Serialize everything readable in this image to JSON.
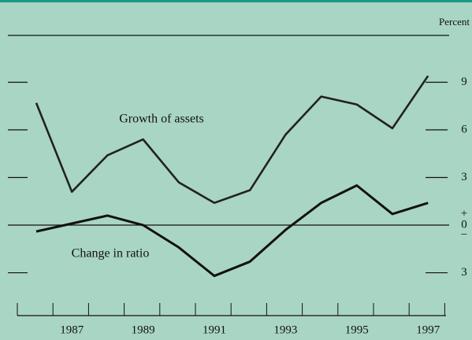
{
  "chart_data": {
    "type": "line",
    "unit_label": "Percent",
    "categories": [
      "1986",
      "1987",
      "1988",
      "1989",
      "1990",
      "1991",
      "1992",
      "1993",
      "1994",
      "1995",
      "1996",
      "1997"
    ],
    "category_labels": [
      null,
      "1987",
      null,
      "1989",
      null,
      "1991",
      null,
      "1993",
      null,
      "1995",
      null,
      "1997"
    ],
    "series": [
      {
        "name": "Growth of assets",
        "color": "#222222",
        "values": [
          7.7,
          2.1,
          4.4,
          5.4,
          2.7,
          1.4,
          2.2,
          5.7,
          8.1,
          7.6,
          6.1,
          9.4
        ]
      },
      {
        "name": "Change in ratio",
        "color": "#111111",
        "values": [
          -0.4,
          0.1,
          0.6,
          0,
          -1.4,
          -3.2,
          -2.3,
          -0.3,
          1.4,
          2.5,
          0.7,
          1.4
        ]
      }
    ],
    "ylim": [
      -5.7,
      12
    ],
    "yticks": [
      {
        "value": -3,
        "label": "3"
      },
      0,
      3,
      6,
      9
    ],
    "zero_signs": [
      "+",
      "−"
    ]
  }
}
